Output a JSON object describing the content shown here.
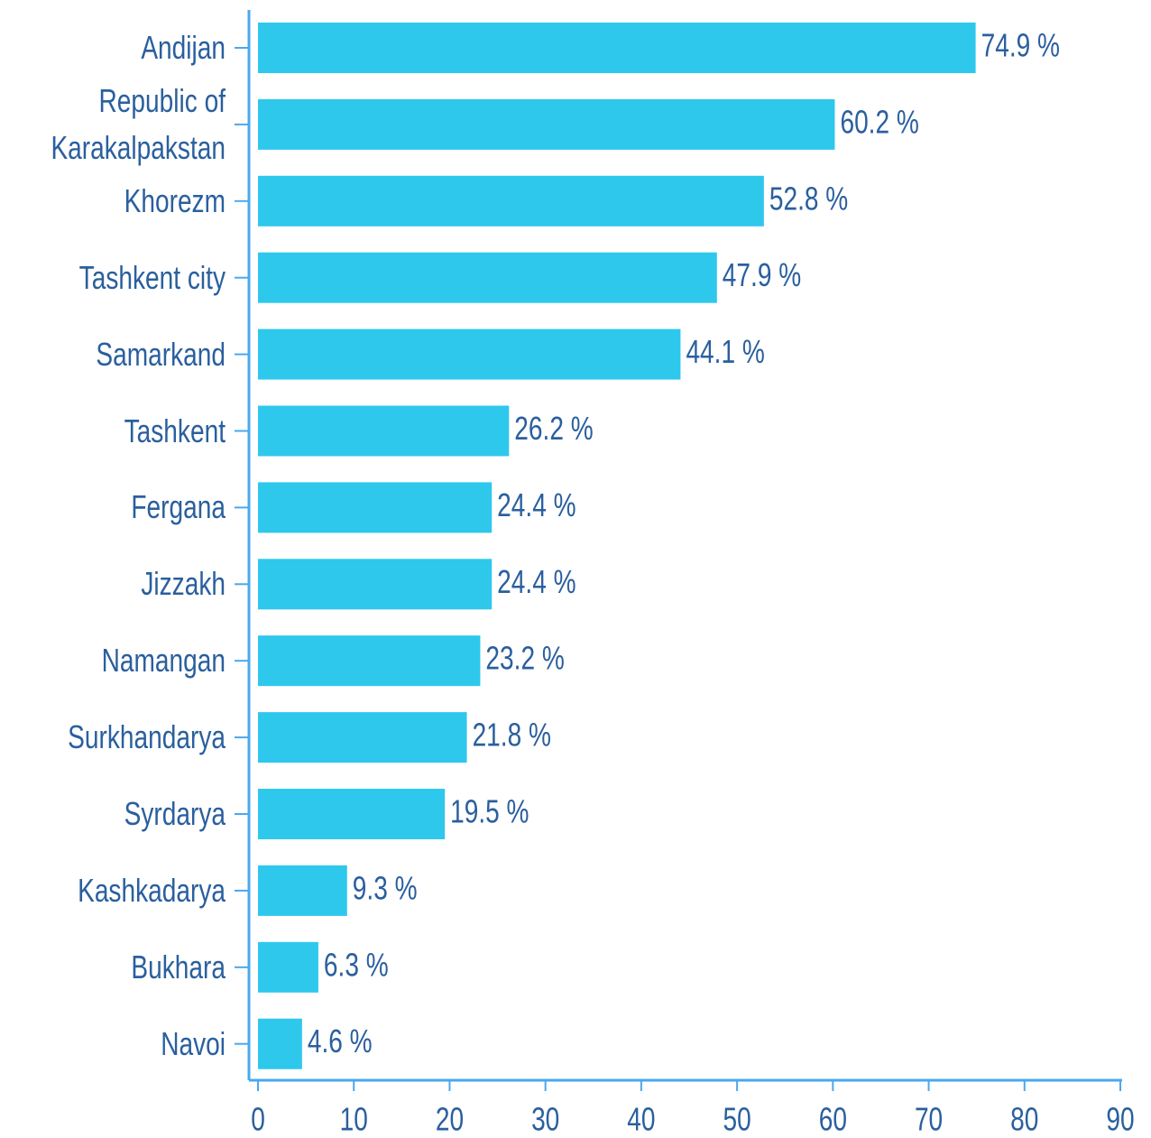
{
  "chart_data": {
    "type": "bar",
    "orientation": "horizontal",
    "categories": [
      "Andijan",
      "Republic of Karakalpakstan",
      "Khorezm",
      "Tashkent city",
      "Samarkand",
      "Tashkent",
      "Fergana",
      "Jizzakh",
      "Namangan",
      "Surkhandarya",
      "Syrdarya",
      "Kashkadarya",
      "Bukhara",
      "Navoi"
    ],
    "values": [
      74.9,
      60.2,
      52.8,
      47.9,
      44.1,
      26.2,
      24.4,
      24.4,
      23.2,
      21.8,
      19.5,
      9.3,
      6.3,
      4.6
    ],
    "value_labels": [
      "74.9 %",
      "60.2 %",
      "52.8 %",
      "47.9 %",
      "44.1 %",
      "26.2 %",
      "24.4 %",
      "24.4 %",
      "23.2 %",
      "21.8 %",
      "19.5 %",
      "9.3 %",
      "6.3 %",
      "4.6 %"
    ],
    "color": "#2ec8ed",
    "xlim": [
      0,
      90
    ],
    "xticks": [
      0,
      10,
      20,
      30,
      40,
      50,
      60,
      70,
      80,
      90
    ]
  }
}
